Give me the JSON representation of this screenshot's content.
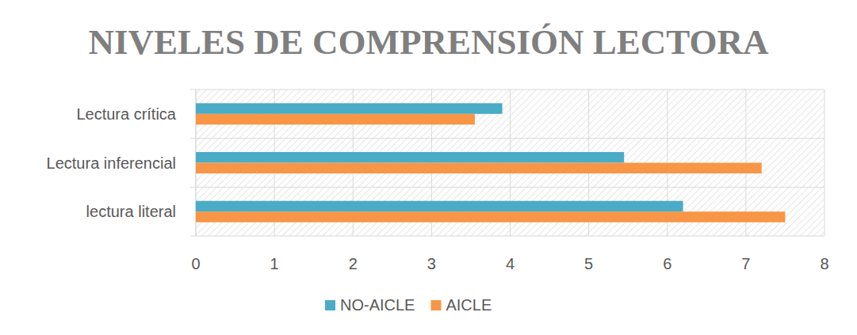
{
  "chart_data": {
    "type": "bar",
    "orientation": "horizontal",
    "title": "NIVELES DE COMPRENSIÓN LECTORA",
    "categories": [
      "Lectura crítica",
      "Lectura inferencial",
      "lectura literal"
    ],
    "series": [
      {
        "name": "NO-AICLE",
        "color": "#4aacc6",
        "values": [
          3.9,
          5.45,
          6.2
        ]
      },
      {
        "name": "AICLE",
        "color": "#f79646",
        "values": [
          3.55,
          7.2,
          7.5
        ]
      }
    ],
    "xlim": [
      0,
      8
    ],
    "xticks": [
      0,
      1,
      2,
      3,
      4,
      5,
      6,
      7,
      8
    ],
    "grid": true,
    "legend": "bottom"
  }
}
